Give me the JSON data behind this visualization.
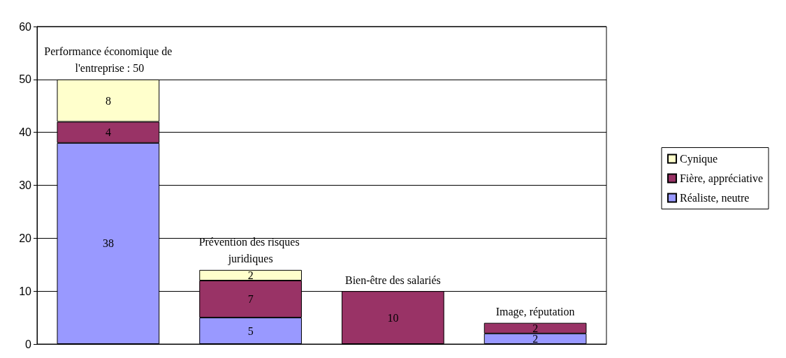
{
  "chart_data": {
    "type": "bar",
    "stacked": true,
    "categories": [
      "Performance économique de l'entreprise : 50",
      "Prévention des risques juridiques",
      "Bien-être des salariés",
      "Image, réputation"
    ],
    "series": [
      {
        "name": "Réaliste, neutre",
        "color": "#9999ff",
        "values": [
          38,
          5,
          null,
          2
        ]
      },
      {
        "name": "Fière, appréciative",
        "color": "#993366",
        "values": [
          4,
          7,
          10,
          2
        ]
      },
      {
        "name": "Cynique",
        "color": "#ffffcc",
        "values": [
          8,
          2,
          null,
          null
        ]
      }
    ],
    "ylim": [
      0,
      60
    ],
    "yticks": [
      0,
      10,
      20,
      30,
      40,
      50,
      60
    ],
    "grid": "y",
    "legend": "right",
    "data_labels": true
  }
}
